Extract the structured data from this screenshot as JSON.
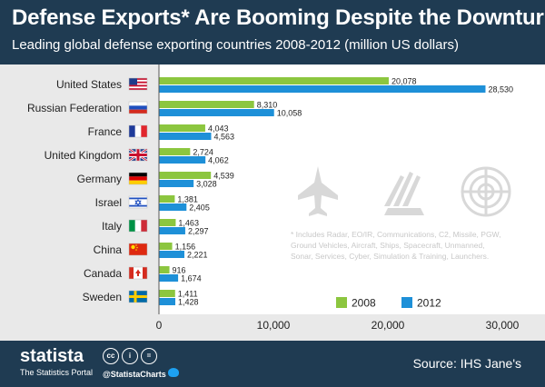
{
  "header": {
    "title": "Defense Exports* Are Booming Despite the Downturn",
    "subtitle": "Leading global defense exporting countries 2008-2012 (million US dollars)"
  },
  "footnote": "* Includes Radar, EO/IR, Communications, C2, Missile, PGW, Ground Vehicles, Aircraft, Ships, Spacecraft, Unmanned, Sonar, Services, Cyber, Simulation & Training, Launchers.",
  "footer": {
    "brand": "statista",
    "tagline": "The Statistics Portal",
    "cc_icons": [
      "cc",
      "i",
      "="
    ],
    "handle": "@StatistaCharts",
    "source": "Source: IHS Jane's"
  },
  "colors": {
    "2008": "#8cc63f",
    "2012": "#1e90d8",
    "header_bg": "#1f3b52",
    "plot_bg": "#ffffff",
    "page_bg": "#e9e9e9"
  },
  "chart_data": {
    "type": "bar",
    "orientation": "horizontal",
    "categories": [
      "United States",
      "Russian Federation",
      "France",
      "United Kingdom",
      "Germany",
      "Israel",
      "Italy",
      "China",
      "Canada",
      "Sweden"
    ],
    "flags": [
      "us-flag-icon",
      "russia-flag-icon",
      "france-flag-icon",
      "uk-flag-icon",
      "germany-flag-icon",
      "israel-flag-icon",
      "italy-flag-icon",
      "china-flag-icon",
      "canada-flag-icon",
      "sweden-flag-icon"
    ],
    "series": [
      {
        "name": "2008",
        "values": [
          20078,
          8310,
          4043,
          2724,
          4539,
          1381,
          1463,
          1156,
          916,
          1411
        ],
        "labels": [
          "20,078",
          "8,310",
          "4,043",
          "2,724",
          "4,539",
          "1,381",
          "1,463",
          "1,156",
          "916",
          "1,411"
        ]
      },
      {
        "name": "2012",
        "values": [
          28530,
          10058,
          4563,
          4062,
          3028,
          2405,
          2297,
          2221,
          1674,
          1428
        ],
        "labels": [
          "28,530",
          "10,058",
          "4,563",
          "4,062",
          "3,028",
          "2,405",
          "2,297",
          "2,221",
          "1,674",
          "1,428"
        ]
      }
    ],
    "xlim": [
      0,
      30000
    ],
    "xticks": [
      0,
      10000,
      20000,
      30000
    ],
    "xtick_labels": [
      "0",
      "10,000",
      "20,000",
      "30,000"
    ],
    "legend": {
      "position": "bottom-right",
      "entries": [
        "2008",
        "2012"
      ]
    },
    "grid": false,
    "decorations": [
      "fighter-jet-icon",
      "missile-launcher-icon",
      "radar-icon"
    ]
  }
}
